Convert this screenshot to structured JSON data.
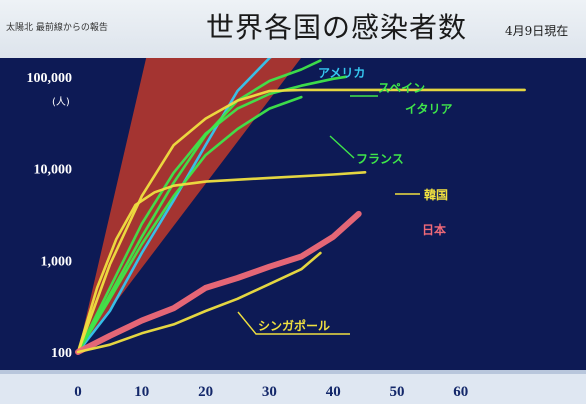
{
  "header": {
    "note": "太陽北 最前線からの報告",
    "title": "世界各国の感染者数",
    "date": "4月9日現在"
  },
  "colors": {
    "background": "#0d1a55",
    "axis_band": "#ffffff",
    "wedge": "#c0392b"
  },
  "chart_data": {
    "type": "line",
    "title": "世界各国の感染者数",
    "yunit": "(人)",
    "ylog": true,
    "xlim": [
      0,
      70
    ],
    "ylim": [
      100,
      200000
    ],
    "xticks": [
      0,
      10,
      20,
      30,
      40,
      50,
      60
    ],
    "yticks": [
      {
        "value": 100,
        "label": "100"
      },
      {
        "value": 1000,
        "label": "1,000"
      },
      {
        "value": 10000,
        "label": "10,000"
      },
      {
        "value": 100000,
        "label": "100,000"
      }
    ],
    "series": [
      {
        "name": "アメリカ",
        "color": "#35c7f0",
        "x": [
          0,
          5,
          10,
          15,
          20,
          25,
          30,
          34
        ],
        "y": [
          100,
          280,
          1200,
          4500,
          18000,
          70000,
          160000,
          250000
        ]
      },
      {
        "name": "スペイン",
        "color": "#3fe64a",
        "x": [
          0,
          5,
          10,
          15,
          20,
          25,
          30,
          35,
          38
        ],
        "y": [
          100,
          420,
          1800,
          7000,
          23000,
          55000,
          90000,
          120000,
          150000
        ]
      },
      {
        "name": "イタリア",
        "color": "#3fe64a",
        "x": [
          0,
          5,
          10,
          15,
          20,
          25,
          30,
          35,
          40,
          42
        ],
        "y": [
          100,
          500,
          2500,
          9000,
          24000,
          45000,
          65000,
          80000,
          95000,
          100000
        ]
      },
      {
        "name": "フランス",
        "color": "#3fe64a",
        "x": [
          0,
          5,
          10,
          15,
          20,
          25,
          30,
          35
        ],
        "y": [
          100,
          380,
          1500,
          5000,
          14000,
          27000,
          45000,
          60000
        ]
      },
      {
        "name": "",
        "color": "#f0e040",
        "x": [
          0,
          5,
          10,
          15,
          20,
          25,
          30,
          35,
          40,
          50,
          60,
          70
        ],
        "y": [
          100,
          900,
          5000,
          18000,
          35000,
          55000,
          70000,
          72000,
          72000,
          72000,
          72000,
          72000
        ]
      },
      {
        "name": "韓国",
        "color": "#f0e040",
        "x": [
          0,
          3,
          6,
          9,
          12,
          15,
          20,
          30,
          40,
          45
        ],
        "y": [
          100,
          500,
          1700,
          4000,
          5500,
          6500,
          7200,
          7900,
          8600,
          9100
        ]
      },
      {
        "name": "日本",
        "color": "#f06a78",
        "x": [
          0,
          5,
          10,
          15,
          20,
          25,
          30,
          35,
          40,
          44
        ],
        "y": [
          100,
          150,
          220,
          300,
          500,
          640,
          850,
          1100,
          1800,
          3200
        ]
      },
      {
        "name": "シンガポール",
        "color": "#f0e040",
        "x": [
          0,
          5,
          10,
          15,
          20,
          25,
          30,
          35,
          38
        ],
        "y": [
          100,
          120,
          160,
          200,
          280,
          380,
          550,
          800,
          1200
        ]
      }
    ],
    "wedge": {
      "x": [
        0,
        11,
        36
      ],
      "y": [
        100,
        200000,
        200000
      ]
    }
  }
}
